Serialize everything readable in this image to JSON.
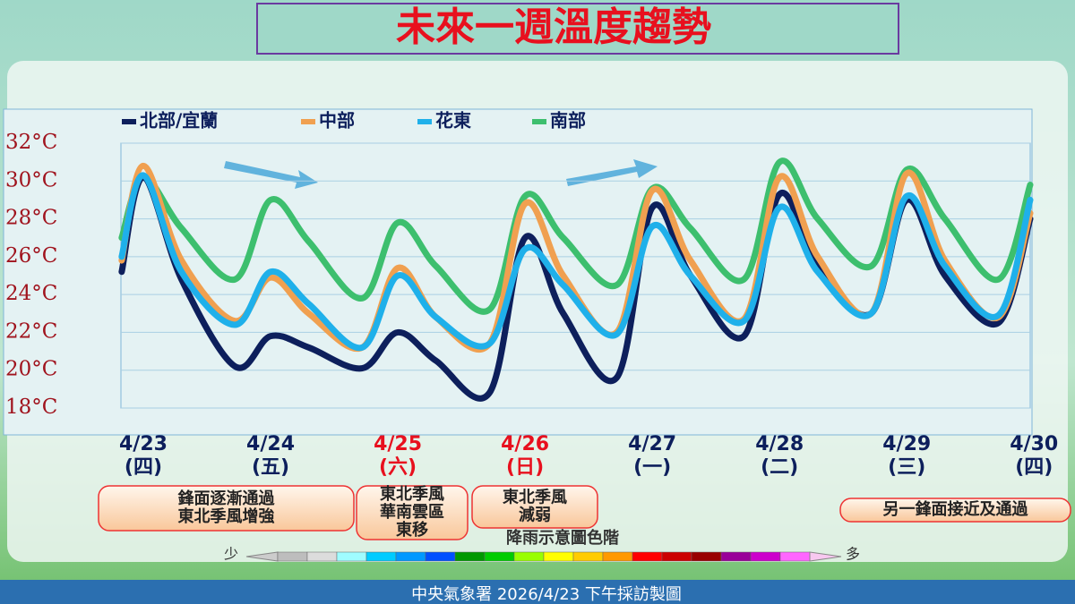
{
  "chart_data": {
    "type": "line",
    "title": "未來一週溫度趨勢",
    "x": [
      -0.17,
      0,
      0.3,
      0.72,
      1.0,
      1.3,
      1.72,
      2.0,
      2.3,
      2.72,
      3.0,
      3.3,
      3.72,
      4.0,
      4.3,
      4.72,
      5.0,
      5.3,
      5.72,
      6.0,
      6.3,
      6.72,
      6.97
    ],
    "xlim": [
      -0.176,
      6.97
    ],
    "xticks": [
      {
        "value": 0,
        "label": "4/23",
        "sublabel": "(四)",
        "color": "#0d1f5c"
      },
      {
        "value": 1,
        "label": "4/24",
        "sublabel": "(五)",
        "color": "#0d1f5c"
      },
      {
        "value": 2,
        "label": "4/25",
        "sublabel": "(六)",
        "color": "#e8101e"
      },
      {
        "value": 3,
        "label": "4/26",
        "sublabel": "(日)",
        "color": "#e8101e"
      },
      {
        "value": 4,
        "label": "4/27",
        "sublabel": "(一)",
        "color": "#0d1f5c"
      },
      {
        "value": 5,
        "label": "4/28",
        "sublabel": "(二)",
        "color": "#0d1f5c"
      },
      {
        "value": 6,
        "label": "4/29",
        "sublabel": "(三)",
        "color": "#0d1f5c"
      },
      {
        "value": 7,
        "label": "4/30",
        "sublabel": "(四)",
        "color": "#0d1f5c"
      }
    ],
    "ylim": [
      18,
      32
    ],
    "yticks": [
      {
        "value": 18,
        "label": "18°C"
      },
      {
        "value": 20,
        "label": "20°C"
      },
      {
        "value": 22,
        "label": "22°C"
      },
      {
        "value": 24,
        "label": "24°C"
      },
      {
        "value": 26,
        "label": "26°C"
      },
      {
        "value": 28,
        "label": "28°C"
      },
      {
        "value": 30,
        "label": "30°C"
      },
      {
        "value": 32,
        "label": "32°C"
      }
    ],
    "grid": true,
    "series": [
      {
        "name": "北部/宜蘭",
        "color": "#0d1f5c",
        "values": [
          25.2,
          30.2,
          24.8,
          20.2,
          21.8,
          21.2,
          20.1,
          22.0,
          20.5,
          18.8,
          27.0,
          23.0,
          19.6,
          28.6,
          25.0,
          21.8,
          29.3,
          25.5,
          23.0,
          29.0,
          25.0,
          22.5,
          28.0
        ]
      },
      {
        "name": "中部",
        "color": "#f0a050",
        "values": [
          25.8,
          30.8,
          25.8,
          22.6,
          24.9,
          23.0,
          21.2,
          25.4,
          22.8,
          21.4,
          28.8,
          25.0,
          22.0,
          29.5,
          25.8,
          22.7,
          30.2,
          26.0,
          23.0,
          30.4,
          25.8,
          22.8,
          28.3
        ]
      },
      {
        "name": "花東",
        "color": "#1fb0ea",
        "values": [
          26.0,
          30.3,
          25.2,
          22.4,
          25.2,
          23.5,
          21.2,
          25.0,
          22.8,
          21.4,
          26.4,
          24.5,
          21.9,
          27.6,
          25.0,
          22.6,
          28.6,
          25.2,
          23.0,
          29.2,
          25.5,
          22.9,
          29.0
        ]
      },
      {
        "name": "南部",
        "color": "#3dbf6e",
        "values": [
          27.0,
          30.2,
          27.5,
          24.8,
          29.0,
          26.8,
          23.8,
          27.8,
          25.5,
          23.2,
          29.2,
          27.0,
          24.5,
          29.6,
          27.5,
          24.8,
          31.0,
          28.0,
          25.5,
          30.6,
          28.0,
          24.8,
          29.8
        ]
      }
    ],
    "annotations": [
      {
        "lines": [
          "鋒面逐漸通過",
          "東北季風增強"
        ]
      },
      {
        "lines": [
          "東北季風",
          "華南雲區",
          "東移"
        ]
      },
      {
        "lines": [
          "東北季風",
          "減弱"
        ]
      },
      {
        "lines": [
          "另一鋒面接近及通過"
        ]
      }
    ],
    "rain_scale": {
      "title": "降雨示意圖色階",
      "low": "少",
      "high": "多",
      "colors": [
        "#bdbdbd",
        "#dcdcdc",
        "#9ffcff",
        "#00ccff",
        "#0099ff",
        "#0050ff",
        "#009900",
        "#00cc00",
        "#99ff00",
        "#ffff00",
        "#ffcc00",
        "#ff9900",
        "#ff0000",
        "#cc0000",
        "#990000",
        "#990099",
        "#cc00cc",
        "#ff66ff"
      ]
    },
    "footer": "中央氣象署 2026/4/23 下午採訪製圖"
  }
}
